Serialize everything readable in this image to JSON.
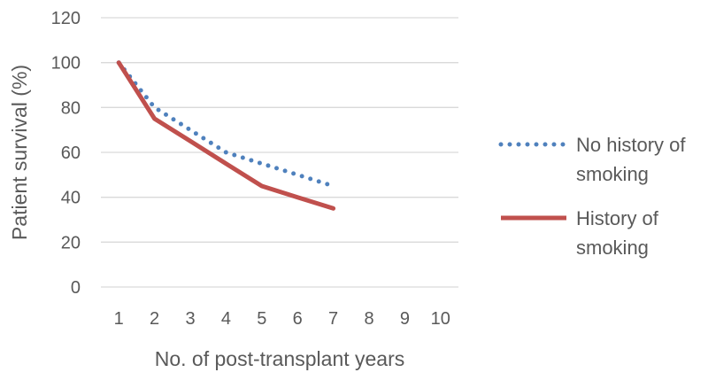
{
  "chart_data": {
    "type": "line",
    "title": "",
    "xlabel": "No. of post-transplant years",
    "ylabel": "Patient survival (%)",
    "x": [
      1,
      2,
      3,
      4,
      5,
      6,
      7,
      8,
      9,
      10
    ],
    "xlim": [
      1,
      10
    ],
    "ylim": [
      0,
      120
    ],
    "yticks": [
      0,
      20,
      40,
      60,
      80,
      100,
      120
    ],
    "grid": true,
    "legend_position": "right",
    "series": [
      {
        "name_lines": [
          "No history of",
          "smoking"
        ],
        "x": [
          1,
          2,
          3,
          4,
          5,
          6,
          7
        ],
        "values": [
          100,
          80,
          70,
          60,
          55,
          50,
          45
        ],
        "color": "#4F81BD",
        "style": "dotted"
      },
      {
        "name_lines": [
          "History of",
          "smoking"
        ],
        "x": [
          1,
          2,
          3,
          4,
          5,
          6,
          7
        ],
        "values": [
          100,
          75,
          65,
          55,
          45,
          40,
          35
        ],
        "color": "#C0504D",
        "style": "solid"
      }
    ]
  }
}
